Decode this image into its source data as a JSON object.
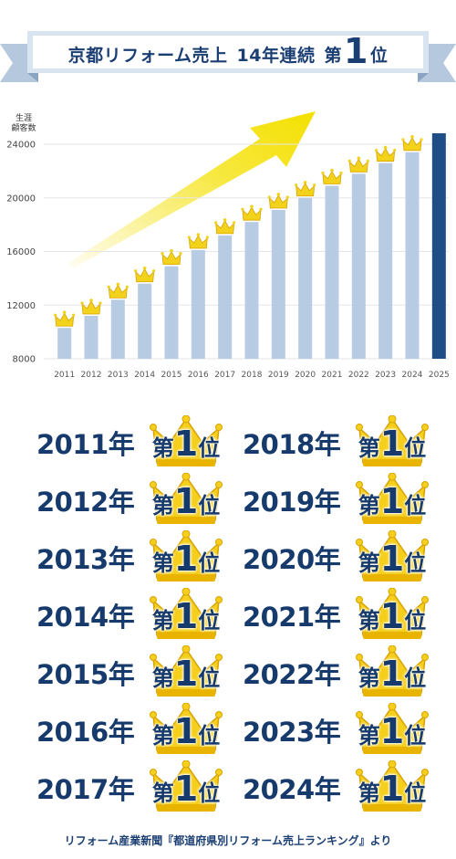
{
  "banner": {
    "text_main": "京都リフォーム売上",
    "text_years": "14年連続",
    "text_rank_prefix": "第",
    "text_rank_number": "1",
    "text_rank_suffix": "位"
  },
  "chart_data": {
    "type": "bar",
    "ylabel": "生涯\n顧客数",
    "ylim": [
      8000,
      25500
    ],
    "yticks": [
      8000,
      12000,
      16000,
      20000,
      24000
    ],
    "categories": [
      "2011",
      "2012",
      "2013",
      "2014",
      "2015",
      "2016",
      "2017",
      "2018",
      "2019",
      "2020",
      "2021",
      "2022",
      "2023",
      "2024",
      "2025"
    ],
    "values": [
      10300,
      11200,
      12400,
      13600,
      14900,
      16100,
      17200,
      18200,
      19100,
      20000,
      20900,
      21800,
      22600,
      23400,
      25500
    ],
    "crowned": [
      true,
      true,
      true,
      true,
      true,
      true,
      true,
      true,
      true,
      true,
      true,
      true,
      true,
      true,
      false
    ],
    "highlight_last": true,
    "colors": {
      "bar": "#b7cce2",
      "highlight": "#1f4e86",
      "crown": "#f2d21a",
      "arrow": "#f4e000",
      "grid": "#e6e6e6"
    }
  },
  "rankings": [
    {
      "year": "2011年",
      "rank_prefix": "第",
      "rank_number": "1",
      "rank_suffix": "位"
    },
    {
      "year": "2012年",
      "rank_prefix": "第",
      "rank_number": "1",
      "rank_suffix": "位"
    },
    {
      "year": "2013年",
      "rank_prefix": "第",
      "rank_number": "1",
      "rank_suffix": "位"
    },
    {
      "year": "2014年",
      "rank_prefix": "第",
      "rank_number": "1",
      "rank_suffix": "位"
    },
    {
      "year": "2015年",
      "rank_prefix": "第",
      "rank_number": "1",
      "rank_suffix": "位"
    },
    {
      "year": "2016年",
      "rank_prefix": "第",
      "rank_number": "1",
      "rank_suffix": "位"
    },
    {
      "year": "2017年",
      "rank_prefix": "第",
      "rank_number": "1",
      "rank_suffix": "位"
    },
    {
      "year": "2018年",
      "rank_prefix": "第",
      "rank_number": "1",
      "rank_suffix": "位"
    },
    {
      "year": "2019年",
      "rank_prefix": "第",
      "rank_number": "1",
      "rank_suffix": "位"
    },
    {
      "year": "2020年",
      "rank_prefix": "第",
      "rank_number": "1",
      "rank_suffix": "位"
    },
    {
      "year": "2021年",
      "rank_prefix": "第",
      "rank_number": "1",
      "rank_suffix": "位"
    },
    {
      "year": "2022年",
      "rank_prefix": "第",
      "rank_number": "1",
      "rank_suffix": "位"
    },
    {
      "year": "2023年",
      "rank_prefix": "第",
      "rank_number": "1",
      "rank_suffix": "位"
    },
    {
      "year": "2024年",
      "rank_prefix": "第",
      "rank_number": "1",
      "rank_suffix": "位"
    }
  ],
  "source": "リフォーム産業新聞『都道府県別リフォーム売上ランキング』より"
}
